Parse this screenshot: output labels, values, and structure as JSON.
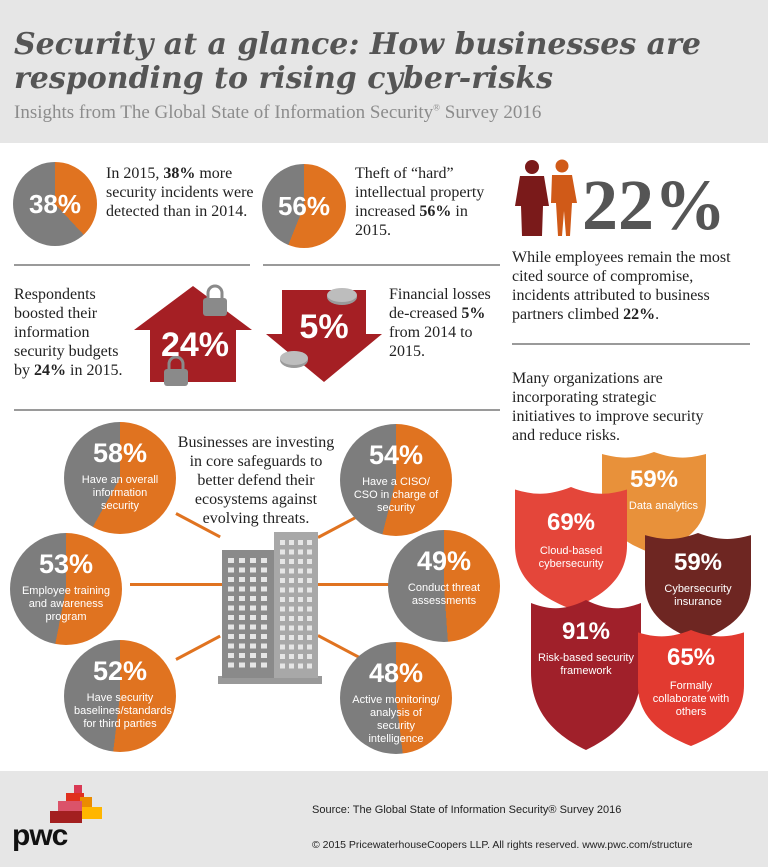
{
  "header": {
    "title": "Security at a glance: How businesses are responding to rising cyber-risks",
    "subtitle": "Insights from The Global State of Information Security",
    "subtitle_mark": "®",
    "subtitle_year": "Survey 2016"
  },
  "stats": {
    "incidents": {
      "pct": "38%",
      "value": 0.38,
      "t1": "In 2015, ",
      "b1": "38%",
      "t2": " more security incidents were detected than in 2014."
    },
    "ip_theft": {
      "pct": "56%",
      "value": 0.56,
      "t1": "Theft of “hard” intellectual property increased ",
      "b1": "56%",
      "t2": " in 2015."
    },
    "partners": {
      "pct": "22%",
      "t1": "While employees remain the most cited source of compromise, incidents attributed to business partners climbed ",
      "b1": "22%",
      "t2": "."
    },
    "budgets": {
      "pct": "24%",
      "t1": "Respondents boosted their information security budgets by ",
      "b1": "24%",
      "t2": " in 2015."
    },
    "losses": {
      "pct": "5%",
      "t1": "Financial losses de-creased ",
      "b1": "5%",
      "t2": " from 2014 to 2015."
    }
  },
  "safeguards": {
    "intro": "Businesses are investing in core safeguards to better defend their ecosystems against evolving threats.",
    "items": [
      {
        "pct": "58%",
        "value": 0.58,
        "label": "Have an overall information security"
      },
      {
        "pct": "54%",
        "value": 0.54,
        "label": "Have a CISO/ CSO in charge of security"
      },
      {
        "pct": "53%",
        "value": 0.53,
        "label": "Employee training and awareness program"
      },
      {
        "pct": "49%",
        "value": 0.49,
        "label": "Conduct threat assessments"
      },
      {
        "pct": "52%",
        "value": 0.52,
        "label": "Have security baselines/standards for third parties"
      },
      {
        "pct": "48%",
        "value": 0.48,
        "label": "Active monitoring/ analysis of security intelligence"
      }
    ]
  },
  "initiatives": {
    "intro": "Many organizations are incorporating strategic initiatives to improve security and reduce risks.",
    "items": [
      {
        "pct": "59%",
        "label": "Big Data analytics",
        "color": "#e8913a"
      },
      {
        "pct": "69%",
        "label": "Cloud-based cybersecurity",
        "color": "#e4463a"
      },
      {
        "pct": "59%",
        "label": "Cybersecurity insurance",
        "color": "#6e2622"
      },
      {
        "pct": "91%",
        "label": "Risk-based security framework",
        "color": "#a0202a"
      },
      {
        "pct": "65%",
        "label": "Formally collaborate with others",
        "color": "#e23a30"
      }
    ]
  },
  "colors": {
    "orange": "#e07320",
    "gray": "#7d7d7d",
    "red": "#a51f24",
    "bg": "#e6e6e6"
  },
  "footer": {
    "source": "Source: The Global State of Information Security® Survey 2016",
    "copyright": "© 2015 PricewaterhouseCoopers LLP.  All rights reserved. www.pwc.com/structure",
    "logo": "pwc"
  }
}
